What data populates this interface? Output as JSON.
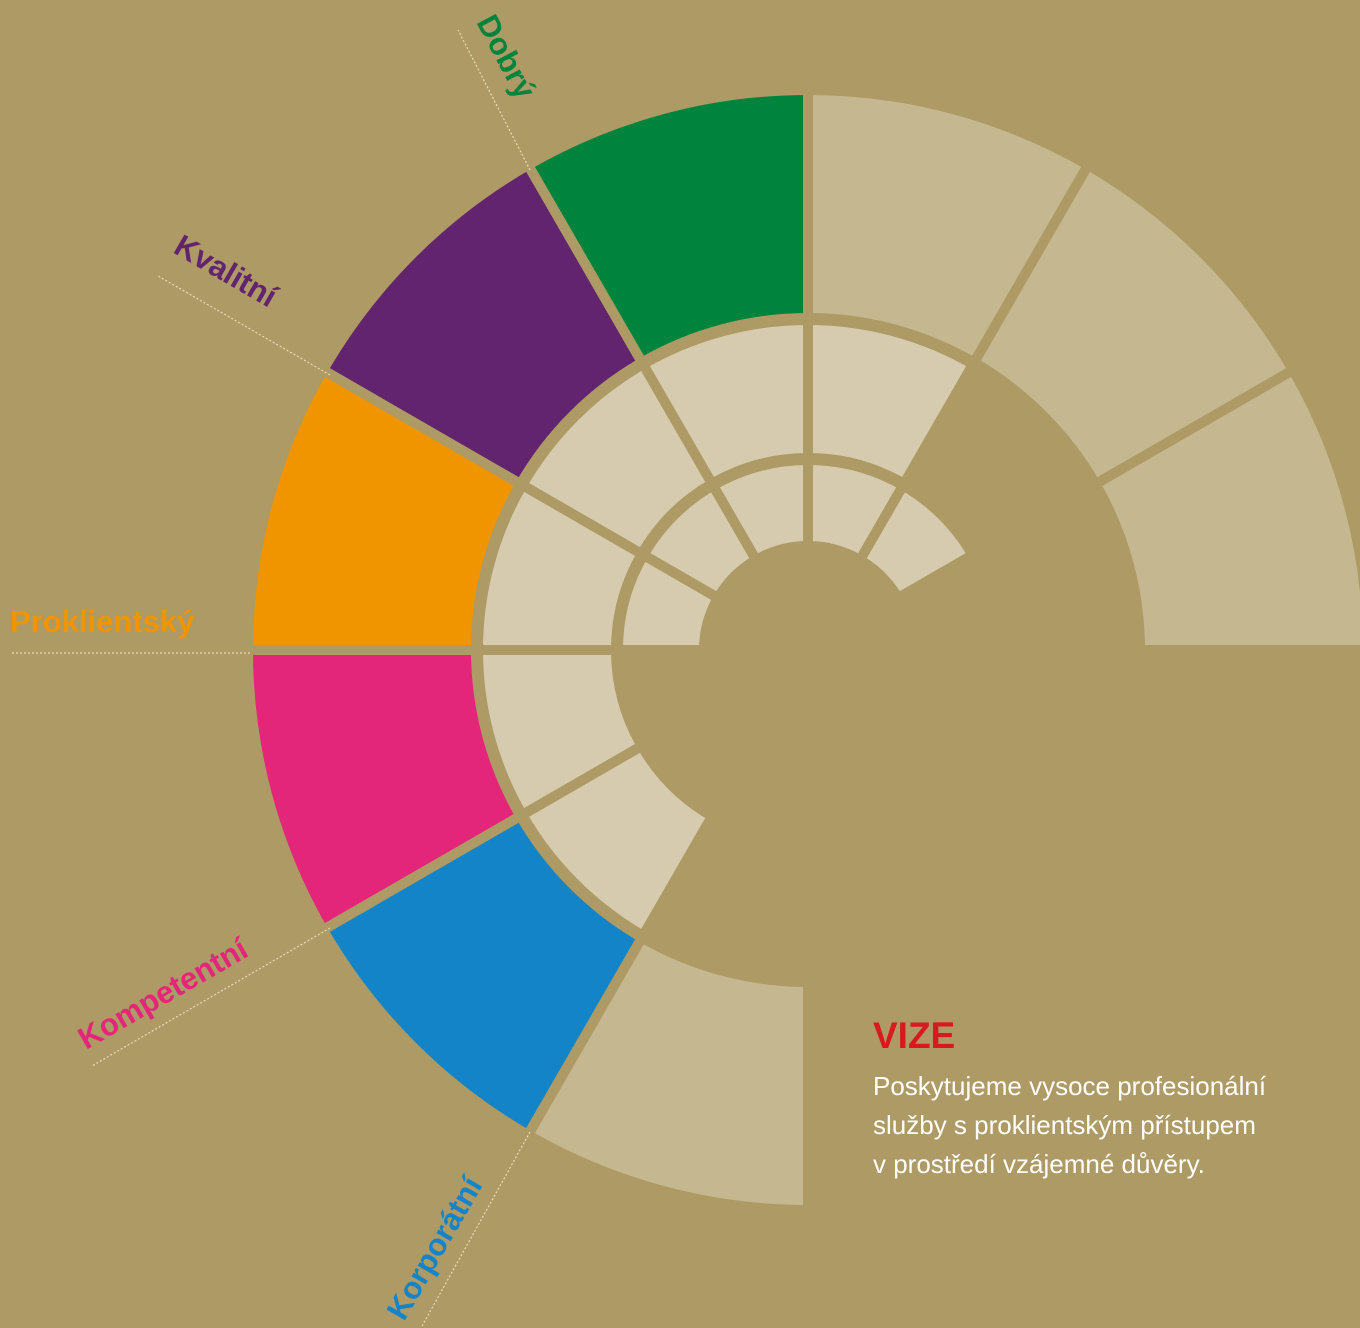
{
  "labels": [
    "Dobrý",
    "Kvalitní",
    "Proklientský",
    "Kompetentní",
    "Korporátní"
  ],
  "vision": {
    "title": "VIZE",
    "lines": [
      "Poskytujeme vysoce profesionální",
      "služby s proklientským přístupem",
      "v prostředí vzájemné důvěry."
    ]
  }
}
